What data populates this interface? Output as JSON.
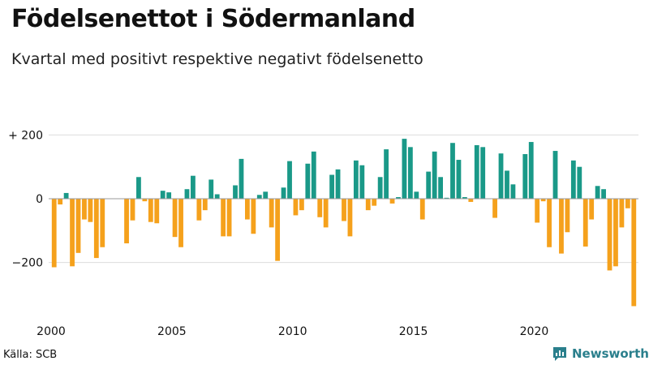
{
  "title": "Födelsenettot i Södermanland",
  "subtitle": "Kvartal med positivt respektive negativt födelsenetto",
  "source": "Källa: SCB",
  "brand": "Newsworthy",
  "colors": {
    "positive": "#1a9988",
    "negative": "#f5a11c",
    "grid": "#dddddd",
    "brand": "#2a7f8c"
  },
  "chart_data": {
    "type": "bar",
    "title": "Födelsenettot i Södermanland",
    "subtitle": "Kvartal med positivt respektive negativt födelsenetto",
    "xlabel": "",
    "ylabel": "",
    "ylim": [
      -350,
      200
    ],
    "yticks": [
      {
        "value": 200,
        "label": "+ 200"
      },
      {
        "value": 0,
        "label": "0"
      },
      {
        "value": -200,
        "label": "−200"
      }
    ],
    "xticks": [
      {
        "index": 0,
        "label": "2000"
      },
      {
        "index": 20,
        "label": "2005"
      },
      {
        "index": 40,
        "label": "2010"
      },
      {
        "index": 60,
        "label": "2015"
      },
      {
        "index": 80,
        "label": "2020"
      }
    ],
    "grid": true,
    "start_year": 2000,
    "values": [
      -215,
      -18,
      18,
      -212,
      -170,
      -65,
      -73,
      -186,
      -152,
      0,
      0,
      0,
      -140,
      -68,
      68,
      -8,
      -73,
      -77,
      25,
      20,
      -120,
      -152,
      30,
      72,
      -68,
      -36,
      60,
      14,
      -118,
      -118,
      42,
      125,
      -65,
      -110,
      12,
      22,
      -90,
      -195,
      35,
      118,
      -52,
      -36,
      110,
      148,
      -58,
      -90,
      75,
      92,
      -70,
      -118,
      120,
      105,
      -36,
      -22,
      68,
      155,
      -15,
      5,
      188,
      162,
      22,
      -65,
      85,
      148,
      68,
      3,
      175,
      122,
      5,
      -10,
      168,
      162,
      0,
      -60,
      142,
      88,
      45,
      0,
      140,
      178,
      -75,
      -8,
      -152,
      150,
      -172,
      -105,
      120,
      100,
      -150,
      -65,
      40,
      30,
      -225,
      -212,
      -90,
      -30,
      -337
    ]
  }
}
